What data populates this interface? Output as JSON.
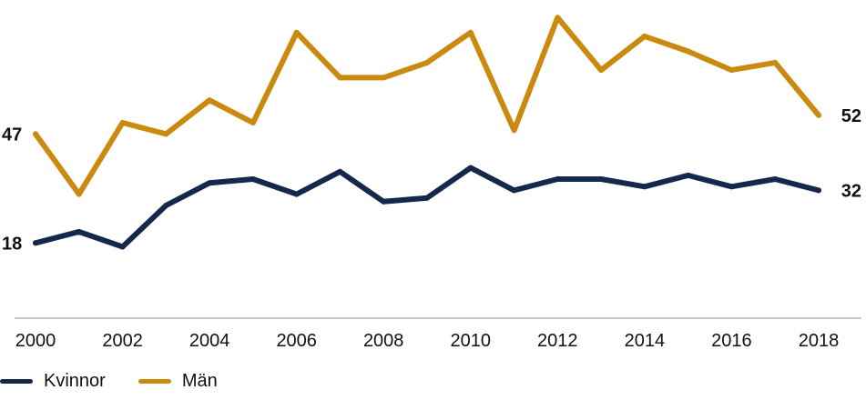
{
  "chart_data": {
    "type": "line",
    "x": [
      "2000",
      "2001",
      "2002",
      "2003",
      "2004",
      "2005",
      "2006",
      "2007",
      "2008",
      "2009",
      "2010",
      "2011",
      "2012",
      "2013",
      "2014",
      "2015",
      "2016",
      "2017",
      "2018"
    ],
    "x_tick_labels": [
      "2000",
      "2002",
      "2004",
      "2006",
      "2008",
      "2010",
      "2012",
      "2014",
      "2016",
      "2018"
    ],
    "series": [
      {
        "name": "Kvinnor",
        "color": "#14284b",
        "values": [
          18,
          21,
          17,
          28,
          34,
          35,
          31,
          37,
          29,
          30,
          38,
          32,
          35,
          35,
          33,
          36,
          33,
          35,
          32
        ],
        "start_label": "18",
        "end_label": "32"
      },
      {
        "name": "Män",
        "color": "#c98a0f",
        "values": [
          47,
          31,
          50,
          47,
          56,
          50,
          74,
          62,
          62,
          66,
          74,
          48,
          78,
          64,
          73,
          69,
          64,
          66,
          52
        ],
        "start_label": "47",
        "end_label": "52"
      }
    ],
    "ylim": [
      -2,
      80
    ],
    "grid": false,
    "legend_placement": "bottom-left"
  }
}
